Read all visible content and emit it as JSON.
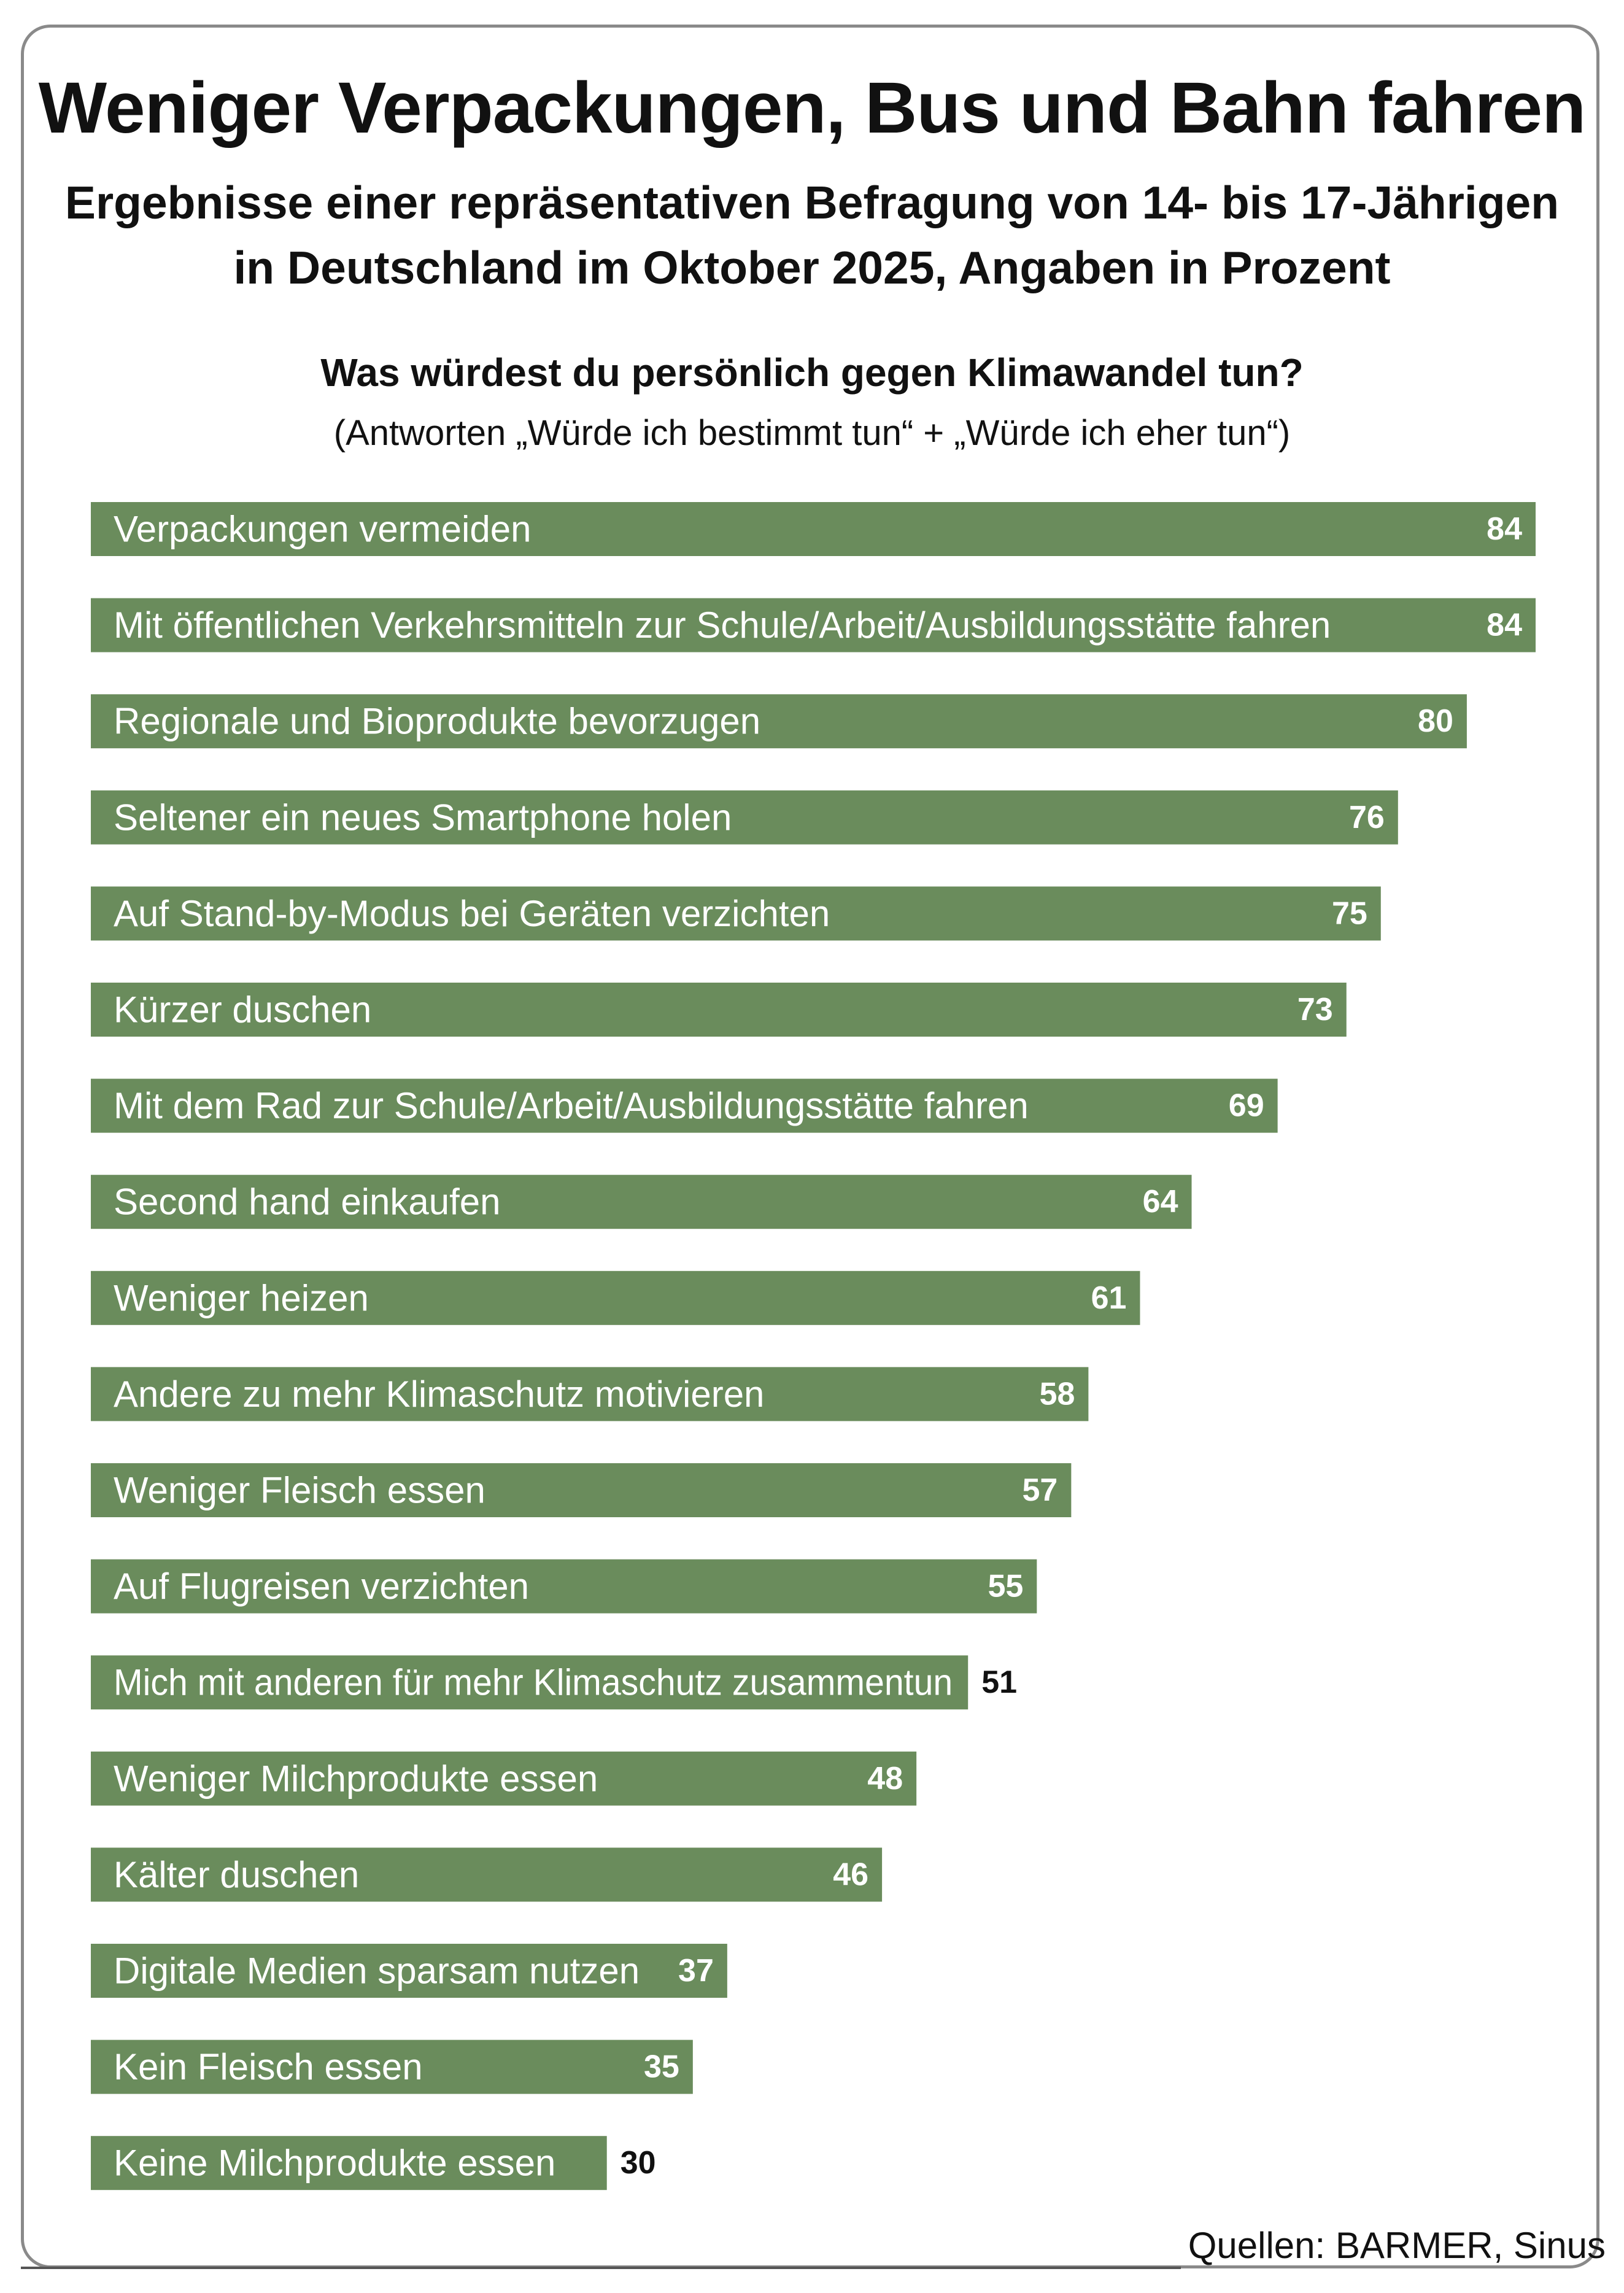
{
  "header": {
    "title": "Weniger Verpackungen, Bus und Bahn fahren",
    "subtitle_line1": "Ergebnisse einer repräsentativen Befragung von 14- bis 17-Jährigen",
    "subtitle_line2": "in Deutschland im Oktober 2025, Angaben in Prozent",
    "question": "Was würdest du persönlich gegen Klimawandel tun?",
    "note": "(Antworten „Würde ich bestimmt tun“ + „Würde ich eher tun“)"
  },
  "footer": {
    "source": "Quellen: BARMER, Sinus"
  },
  "colors": {
    "bar": "#6a8c5c",
    "bar_text": "#ffffff",
    "outside_value": "#111111",
    "frame": "#8a8a8a"
  },
  "chart_data": {
    "type": "bar",
    "orientation": "horizontal",
    "title": "Was würdest du persönlich gegen Klimawandel tun?",
    "unit": "Prozent",
    "xlim": [
      0,
      84
    ],
    "grid": false,
    "legend": "none",
    "categories": [
      "Verpackungen vermeiden",
      "Mit öffentlichen Verkehrsmitteln zur Schule/Arbeit/Ausbildungsstätte fahren",
      "Regionale und Bioprodukte bevorzugen",
      "Seltener ein neues Smartphone holen",
      "Auf Stand-by-Modus bei Geräten verzichten",
      "Kürzer duschen",
      "Mit dem Rad zur Schule/Arbeit/Ausbildungsstätte fahren",
      "Second hand einkaufen",
      "Weniger heizen",
      "Andere zu mehr Klimaschutz motivieren",
      "Weniger Fleisch essen",
      "Auf Flugreisen verzichten",
      "Mich mit anderen für mehr Klimaschutz zusammentun",
      "Weniger Milchprodukte essen",
      "Kälter duschen",
      "Digitale Medien sparsam nutzen",
      "Kein Fleisch essen",
      "Keine Milchprodukte essen"
    ],
    "values": [
      84,
      84,
      80,
      76,
      75,
      73,
      69,
      64,
      61,
      58,
      57,
      55,
      51,
      48,
      46,
      37,
      35,
      30
    ]
  }
}
